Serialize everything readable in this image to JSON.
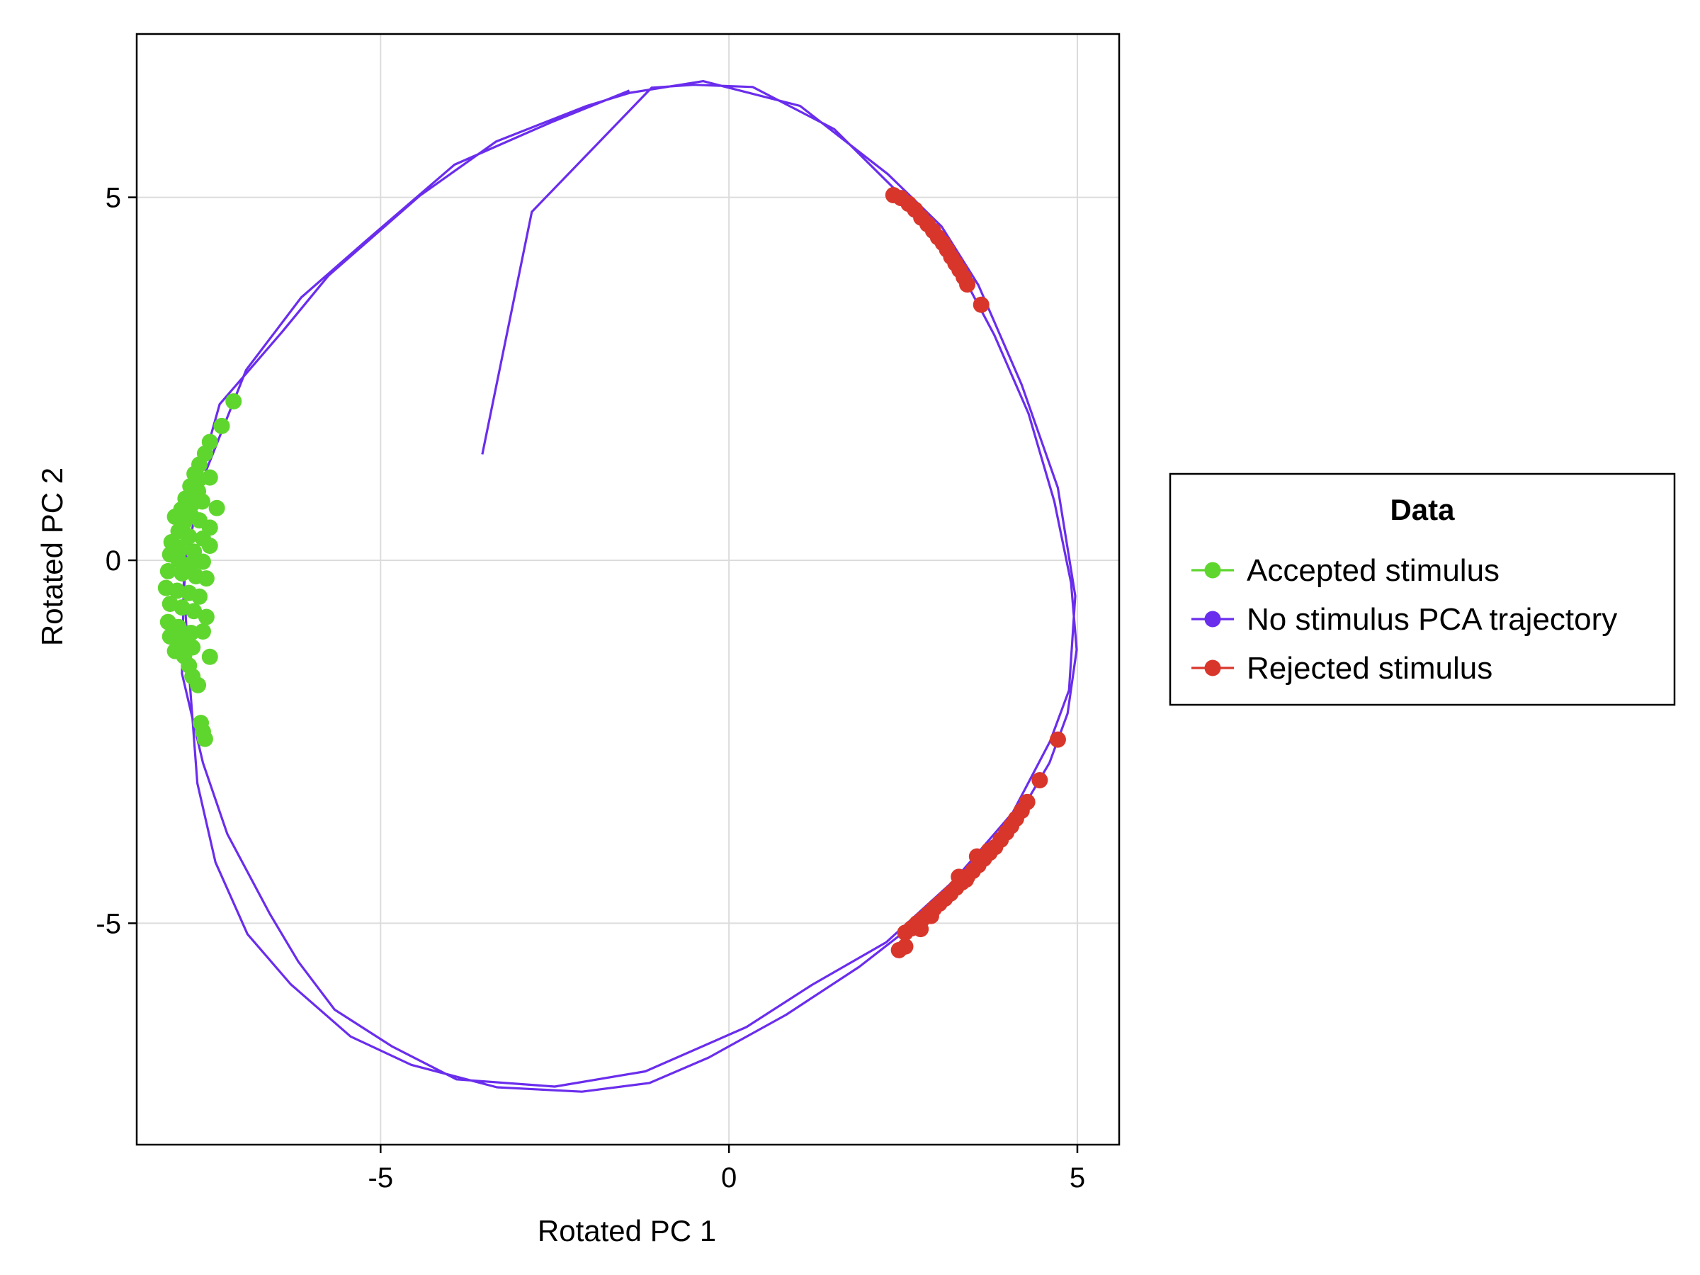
{
  "chart_data": {
    "type": "scatter",
    "title": "",
    "xlabel": "Rotated PC 1",
    "ylabel": "Rotated PC 2",
    "xlim": [
      -8.5,
      5.6
    ],
    "ylim": [
      -8.05,
      7.25
    ],
    "xticks": [
      -5,
      0,
      5
    ],
    "yticks": [
      -5,
      0,
      5
    ],
    "xtick_labels": [
      "-5",
      "0",
      "5"
    ],
    "ytick_labels": [
      "-5",
      "0",
      "5"
    ],
    "grid": true,
    "legend": {
      "title": "Data",
      "placement": "right",
      "entries": [
        {
          "label": "Accepted stimulus",
          "color": "#5fd62e"
        },
        {
          "label": "No stimulus PCA trajectory",
          "color": "#6a2ded"
        },
        {
          "label": "Rejected stimulus",
          "color": "#d9362b"
        }
      ]
    },
    "series": [
      {
        "name": "No stimulus PCA trajectory",
        "kind": "line",
        "color": "#6a2ded",
        "points": [
          [
            -3.54,
            1.46
          ],
          [
            -2.83,
            4.8
          ],
          [
            -1.11,
            6.51
          ],
          [
            -0.5,
            6.55
          ],
          [
            0.34,
            6.52
          ],
          [
            1.51,
            5.94
          ],
          [
            2.55,
            4.95
          ],
          [
            3.24,
            4.13
          ],
          [
            3.81,
            3.1
          ],
          [
            4.3,
            2.02
          ],
          [
            4.67,
            0.81
          ],
          [
            4.91,
            -0.31
          ],
          [
            4.99,
            -1.23
          ],
          [
            4.86,
            -2.11
          ],
          [
            4.6,
            -2.79
          ],
          [
            4.16,
            -3.51
          ],
          [
            3.51,
            -4.22
          ],
          [
            2.74,
            -4.95
          ],
          [
            1.87,
            -5.6
          ],
          [
            0.82,
            -6.26
          ],
          [
            -0.29,
            -6.85
          ],
          [
            -1.14,
            -7.2
          ],
          [
            -2.11,
            -7.32
          ],
          [
            -3.33,
            -7.26
          ],
          [
            -4.56,
            -6.95
          ],
          [
            -5.43,
            -6.56
          ],
          [
            -6.29,
            -5.84
          ],
          [
            -6.91,
            -5.15
          ],
          [
            -7.37,
            -4.16
          ],
          [
            -7.63,
            -3.07
          ],
          [
            -7.75,
            -1.54
          ],
          [
            -7.82,
            -0.38
          ],
          [
            -7.74,
            0.68
          ],
          [
            -7.31,
            2.15
          ],
          [
            -6.41,
            3.15
          ],
          [
            -5.75,
            3.92
          ],
          [
            -4.44,
            5.02
          ],
          [
            -3.34,
            5.77
          ],
          [
            -2.04,
            6.26
          ],
          [
            -1.42,
            6.44
          ],
          [
            -0.37,
            6.6
          ],
          [
            1.02,
            6.26
          ],
          [
            2.28,
            5.32
          ],
          [
            3.05,
            4.6
          ],
          [
            3.58,
            3.79
          ],
          [
            4.2,
            2.42
          ],
          [
            4.72,
            1.0
          ],
          [
            4.97,
            -0.49
          ],
          [
            4.88,
            -1.79
          ],
          [
            4.61,
            -2.49
          ],
          [
            4.07,
            -3.48
          ],
          [
            3.22,
            -4.42
          ],
          [
            2.26,
            -5.26
          ],
          [
            1.19,
            -5.85
          ],
          [
            0.25,
            -6.43
          ],
          [
            -1.2,
            -7.04
          ],
          [
            -2.5,
            -7.25
          ],
          [
            -3.91,
            -7.15
          ],
          [
            -4.83,
            -6.7
          ],
          [
            -5.66,
            -6.19
          ],
          [
            -6.18,
            -5.53
          ],
          [
            -6.59,
            -4.87
          ],
          [
            -7.2,
            -3.77
          ],
          [
            -7.55,
            -2.79
          ],
          [
            -7.85,
            -1.56
          ],
          [
            -7.82,
            -0.11
          ],
          [
            -7.56,
            1.1
          ],
          [
            -6.93,
            2.62
          ],
          [
            -6.14,
            3.62
          ],
          [
            -5.21,
            4.4
          ],
          [
            -3.94,
            5.45
          ],
          [
            -2.56,
            6.03
          ],
          [
            -1.43,
            6.47
          ]
        ]
      },
      {
        "name": "Accepted stimulus",
        "kind": "scatter",
        "color": "#5fd62e",
        "points": [
          [
            -7.11,
            2.19
          ],
          [
            -7.28,
            1.85
          ],
          [
            -7.45,
            1.63
          ],
          [
            -7.52,
            1.47
          ],
          [
            -7.6,
            1.32
          ],
          [
            -7.67,
            1.19
          ],
          [
            -7.6,
            1.12
          ],
          [
            -7.45,
            1.14
          ],
          [
            -7.73,
            1.02
          ],
          [
            -7.62,
            0.95
          ],
          [
            -7.8,
            0.85
          ],
          [
            -7.7,
            0.78
          ],
          [
            -7.56,
            0.81
          ],
          [
            -7.86,
            0.7
          ],
          [
            -7.35,
            0.72
          ],
          [
            -7.72,
            0.62
          ],
          [
            -7.95,
            0.6
          ],
          [
            -7.82,
            0.52
          ],
          [
            -7.6,
            0.55
          ],
          [
            -7.45,
            0.45
          ],
          [
            -7.9,
            0.4
          ],
          [
            -7.75,
            0.33
          ],
          [
            -7.55,
            0.3
          ],
          [
            -8.0,
            0.25
          ],
          [
            -7.85,
            0.18
          ],
          [
            -7.68,
            0.12
          ],
          [
            -7.45,
            0.2
          ],
          [
            -8.02,
            0.08
          ],
          [
            -7.9,
            0.0
          ],
          [
            -7.72,
            -0.05
          ],
          [
            -7.55,
            -0.02
          ],
          [
            -8.05,
            -0.15
          ],
          [
            -7.85,
            -0.18
          ],
          [
            -7.65,
            -0.22
          ],
          [
            -7.5,
            -0.25
          ],
          [
            -8.08,
            -0.38
          ],
          [
            -7.92,
            -0.42
          ],
          [
            -7.75,
            -0.45
          ],
          [
            -7.6,
            -0.5
          ],
          [
            -8.02,
            -0.6
          ],
          [
            -7.85,
            -0.65
          ],
          [
            -7.68,
            -0.7
          ],
          [
            -7.5,
            -0.78
          ],
          [
            -8.05,
            -0.85
          ],
          [
            -7.9,
            -0.92
          ],
          [
            -7.72,
            -1.0
          ],
          [
            -7.55,
            -0.98
          ],
          [
            -8.02,
            -1.05
          ],
          [
            -7.85,
            -1.12
          ],
          [
            -7.7,
            -1.2
          ],
          [
            -7.95,
            -1.25
          ],
          [
            -7.82,
            -1.32
          ],
          [
            -7.45,
            -1.33
          ],
          [
            -7.75,
            -1.45
          ],
          [
            -7.7,
            -1.6
          ],
          [
            -7.62,
            -1.72
          ],
          [
            -7.58,
            -2.24
          ],
          [
            -7.55,
            -2.36
          ],
          [
            -7.52,
            -2.46
          ]
        ]
      },
      {
        "name": "Rejected stimulus",
        "kind": "scatter",
        "color": "#d9362b",
        "points": [
          [
            2.36,
            5.03
          ],
          [
            2.47,
            4.99
          ],
          [
            2.58,
            4.91
          ],
          [
            2.67,
            4.83
          ],
          [
            2.76,
            4.72
          ],
          [
            2.85,
            4.63
          ],
          [
            2.93,
            4.54
          ],
          [
            3.0,
            4.45
          ],
          [
            3.07,
            4.37
          ],
          [
            3.13,
            4.28
          ],
          [
            3.19,
            4.18
          ],
          [
            3.25,
            4.09
          ],
          [
            3.31,
            4.0
          ],
          [
            3.37,
            3.9
          ],
          [
            3.42,
            3.8
          ],
          [
            3.62,
            3.52
          ],
          [
            4.72,
            -2.47
          ],
          [
            4.46,
            -3.03
          ],
          [
            4.28,
            -3.33
          ],
          [
            4.2,
            -3.45
          ],
          [
            4.12,
            -3.56
          ],
          [
            4.05,
            -3.66
          ],
          [
            3.98,
            -3.75
          ],
          [
            3.9,
            -3.85
          ],
          [
            3.82,
            -3.95
          ],
          [
            3.74,
            -4.03
          ],
          [
            3.66,
            -4.11
          ],
          [
            3.58,
            -4.2
          ],
          [
            3.5,
            -4.28
          ],
          [
            3.42,
            -4.36
          ],
          [
            3.34,
            -4.44
          ],
          [
            3.26,
            -4.51
          ],
          [
            3.18,
            -4.59
          ],
          [
            3.1,
            -4.66
          ],
          [
            3.02,
            -4.73
          ],
          [
            2.94,
            -4.8
          ],
          [
            2.86,
            -4.87
          ],
          [
            2.78,
            -4.94
          ],
          [
            2.7,
            -5.0
          ],
          [
            2.62,
            -5.07
          ],
          [
            2.53,
            -5.13
          ],
          [
            2.44,
            -5.37
          ],
          [
            2.53,
            -5.32
          ],
          [
            3.56,
            -4.08
          ],
          [
            3.73,
            -4.0
          ],
          [
            3.3,
            -4.36
          ],
          [
            3.4,
            -4.4
          ],
          [
            2.9,
            -4.9
          ],
          [
            2.75,
            -5.08
          ]
        ]
      }
    ]
  }
}
